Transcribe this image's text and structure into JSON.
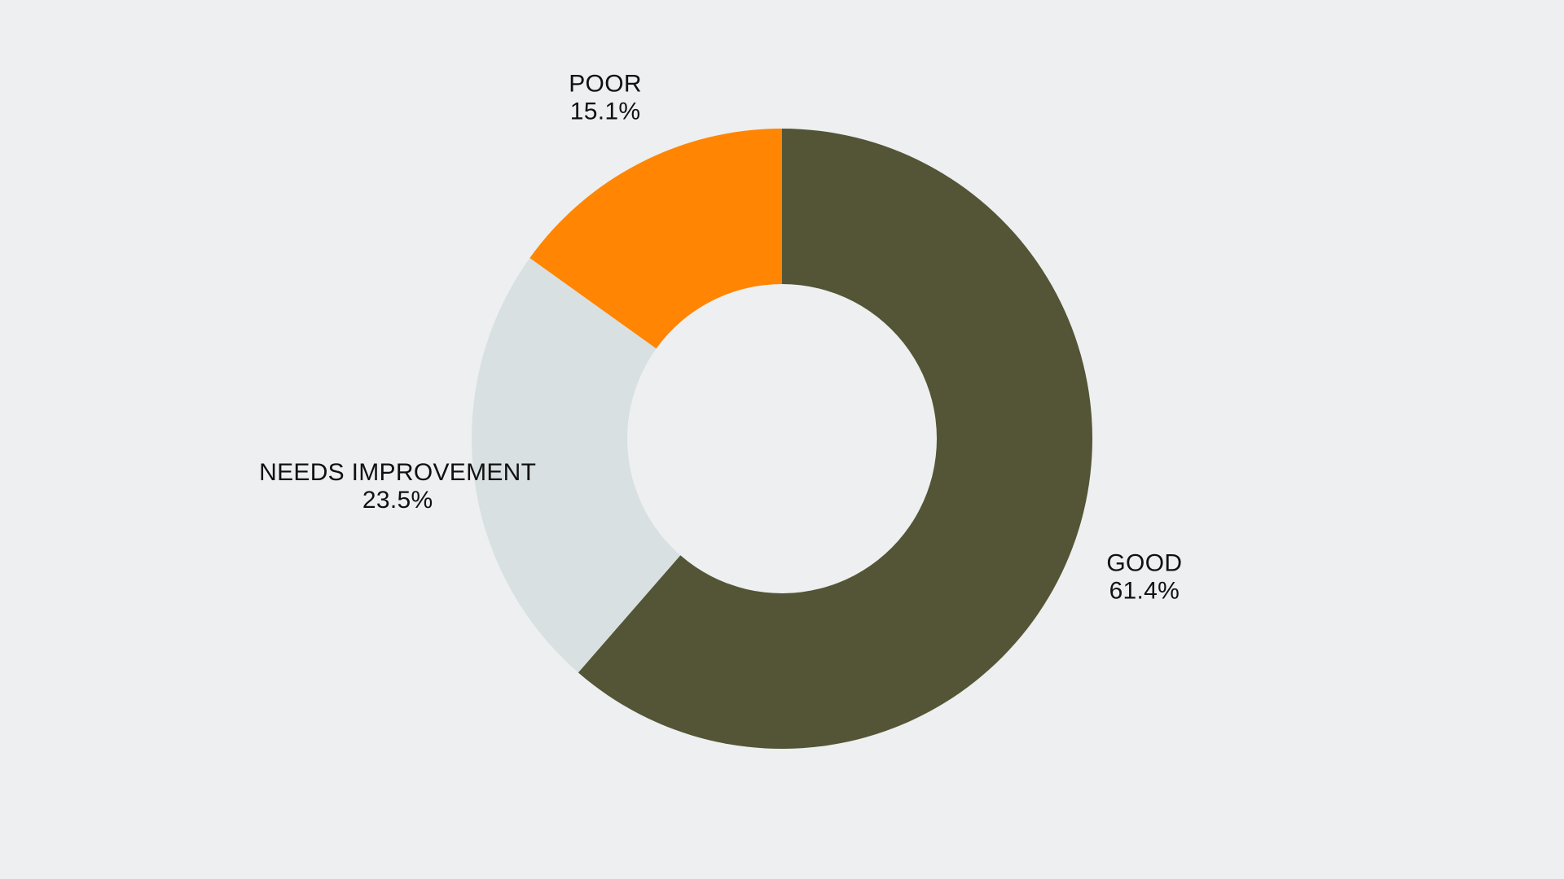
{
  "background": "#edeff0",
  "chart_data": {
    "type": "pie",
    "variant": "donut",
    "title": "",
    "slices": [
      {
        "label": "GOOD",
        "value": 61.4,
        "value_label": "61.4%",
        "color": "#535536"
      },
      {
        "label": "NEEDS IMPROVEMENT",
        "value": 23.5,
        "value_label": "23.5%",
        "color": "#d8e0e2"
      },
      {
        "label": "POOR",
        "value": 15.1,
        "value_label": "15.1%",
        "color": "#ff8502"
      }
    ],
    "start": "top",
    "direction": "clockwise",
    "legend": "none"
  }
}
